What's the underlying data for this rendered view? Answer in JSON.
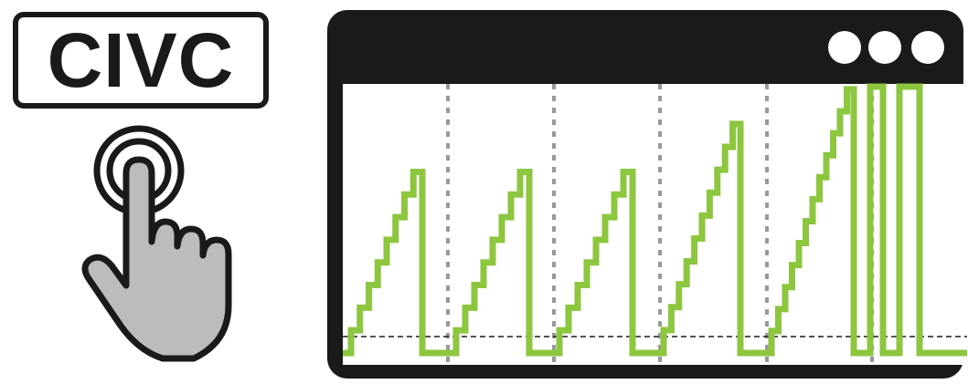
{
  "button": {
    "label": "CIVC"
  },
  "icons": {
    "hand": "pointing-hand-tap-icon",
    "window_dots": [
      "dot-icon",
      "dot-icon",
      "dot-icon"
    ]
  },
  "colors": {
    "frame": "#1a1a1a",
    "signal": "#8dc63f",
    "hand_fill": "#bcbcbc",
    "grid": "#999999"
  },
  "diagram": {
    "description_type": "stepped sawtooth waveform",
    "segments": [
      {
        "steps": 8,
        "peak": 0.68
      },
      {
        "steps": 8,
        "peak": 0.68
      },
      {
        "steps": 8,
        "peak": 0.68
      },
      {
        "steps": 10,
        "peak": 0.86
      },
      {
        "steps": 12,
        "peak": 0.99
      }
    ],
    "pulses": 3
  }
}
